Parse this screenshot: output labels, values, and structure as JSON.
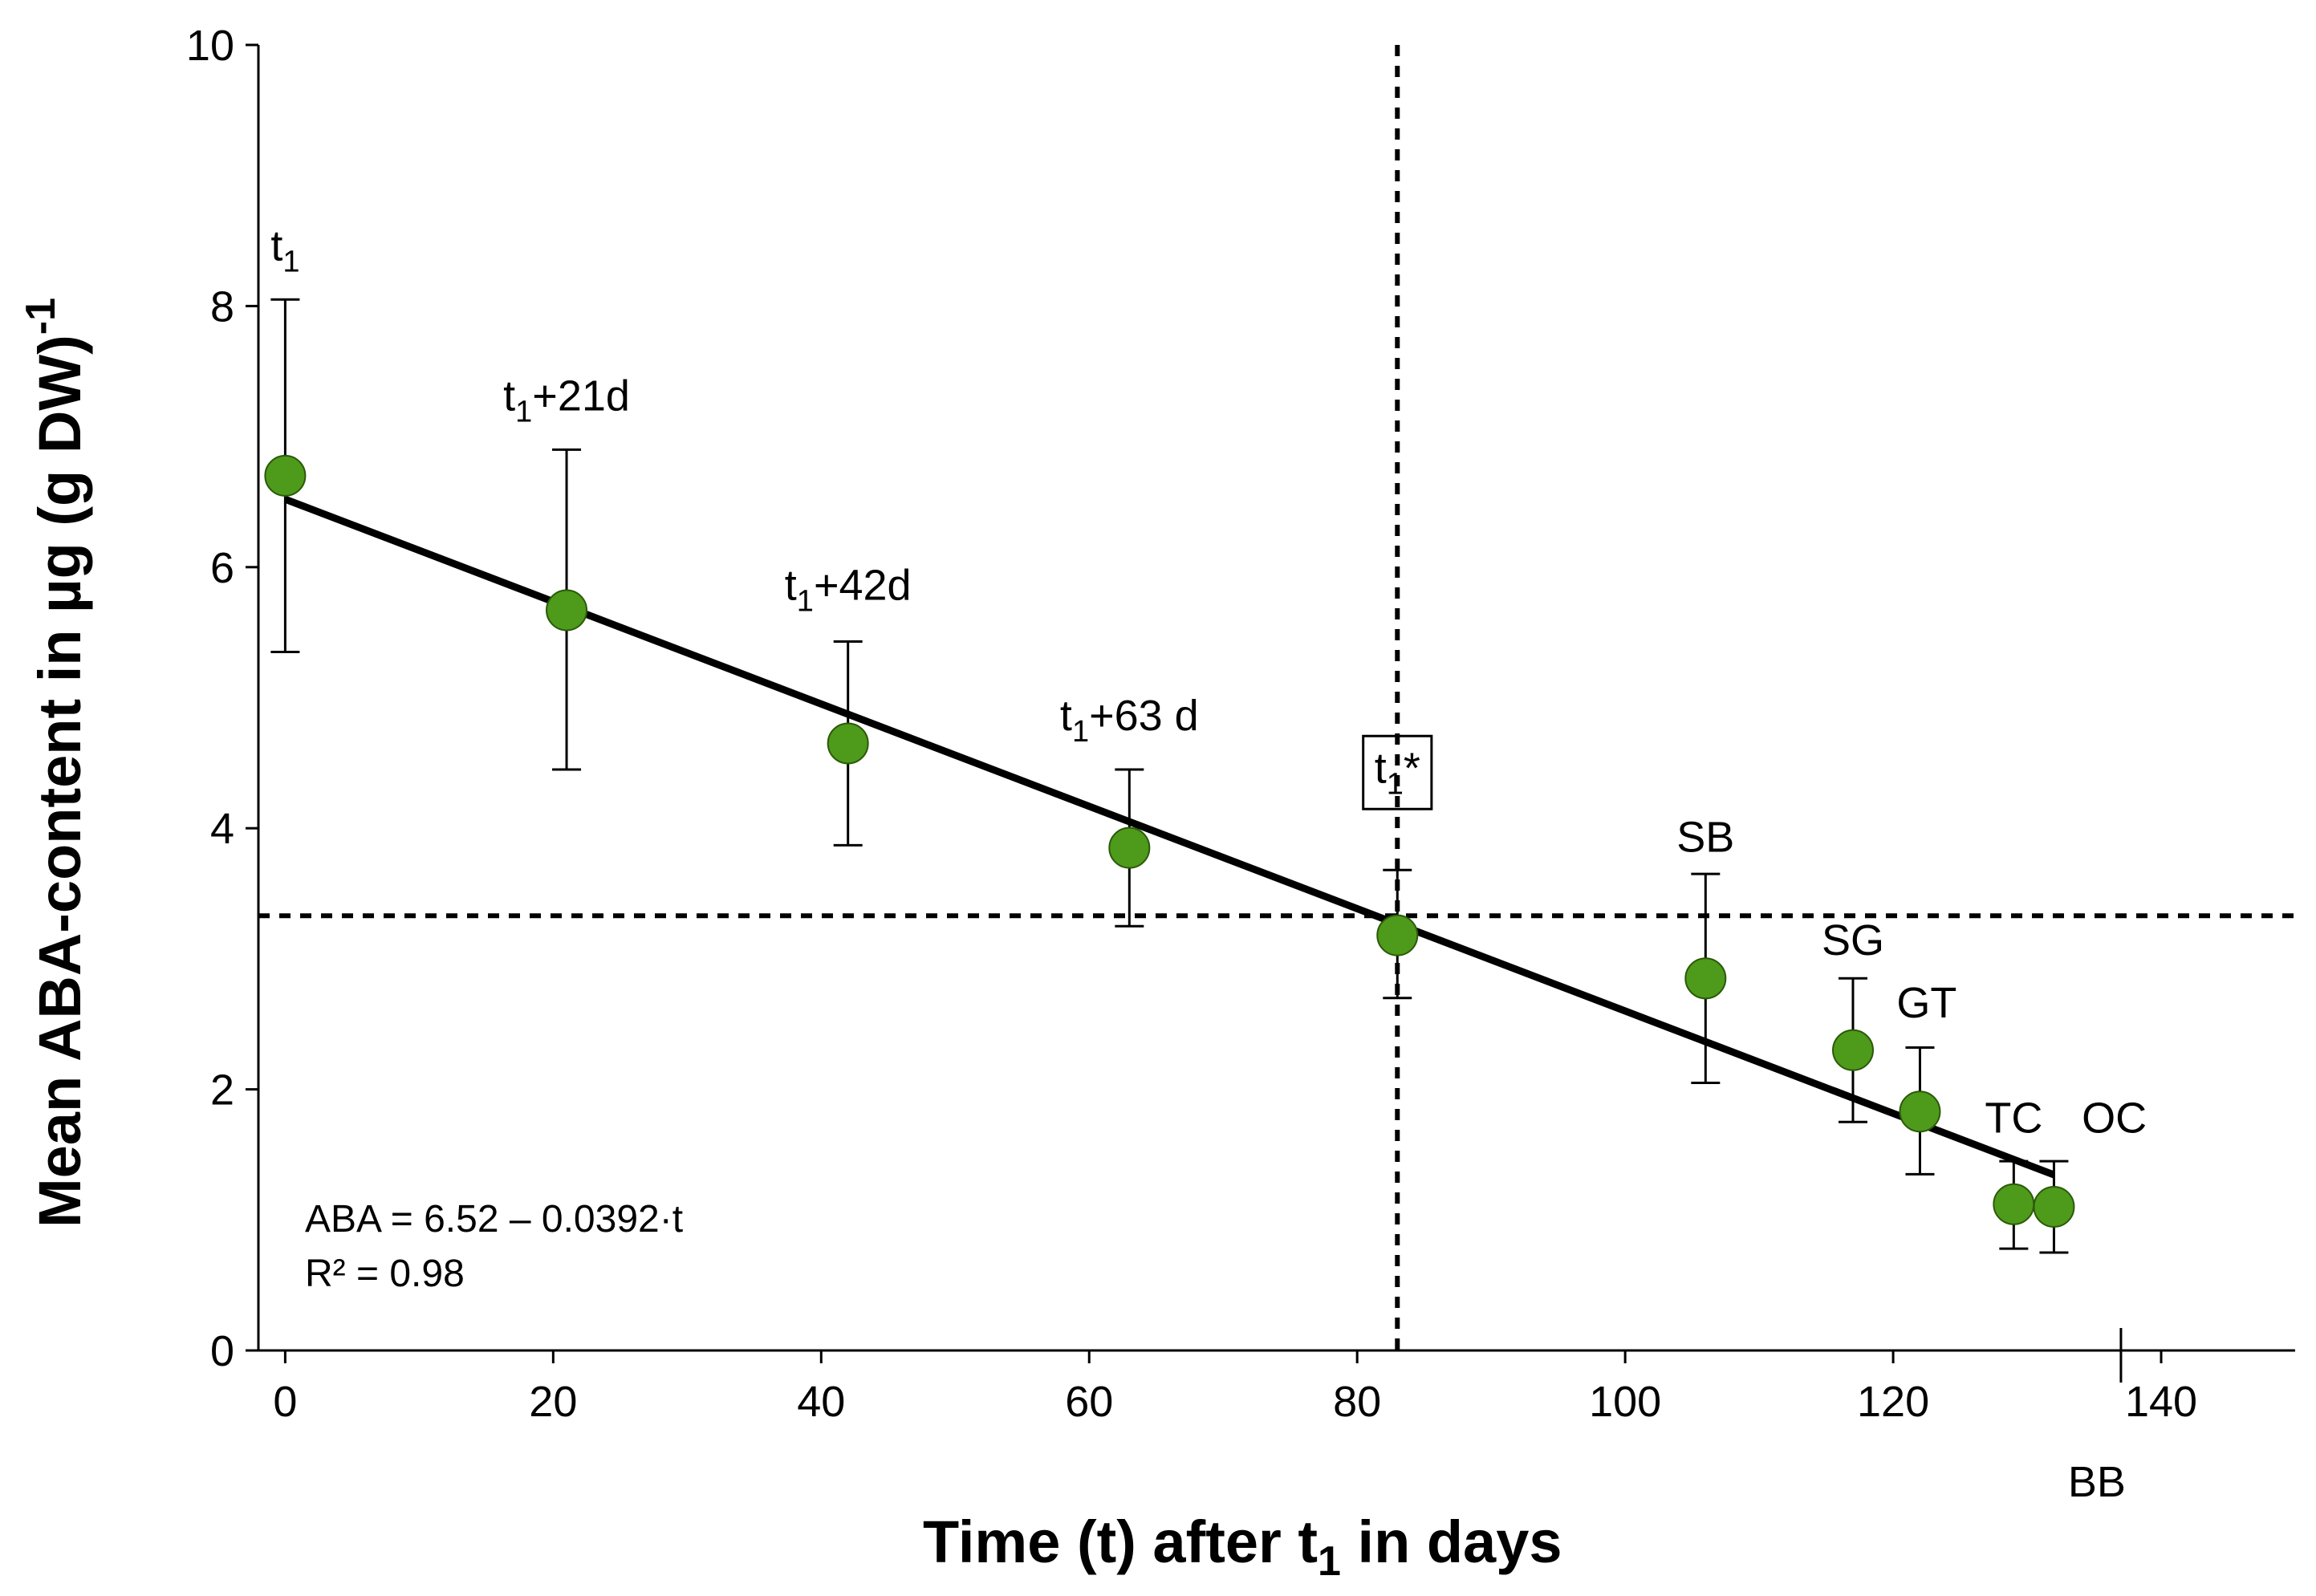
{
  "chart_data": {
    "type": "scatter",
    "xlabel": "Time (t) after t",
    "xlabel_sub": "1",
    "xlabel_suffix": " in days",
    "ylabel": "Mean ABA-content in µg (g DW)",
    "ylabel_sup": "-1",
    "xlim": [
      -2,
      150
    ],
    "ylim": [
      0,
      10
    ],
    "x_ticks": [
      0,
      20,
      40,
      60,
      80,
      100,
      120,
      140
    ],
    "y_ticks": [
      0,
      2,
      4,
      6,
      8,
      10
    ],
    "series": [
      {
        "name": "Mean ABA-content",
        "color": "#4e9a1a",
        "points": [
          {
            "x": 0,
            "y": 6.7,
            "err_low": 5.35,
            "err_high": 8.05
          },
          {
            "x": 21,
            "y": 5.67,
            "err_low": 4.45,
            "err_high": 6.9
          },
          {
            "x": 42,
            "y": 4.65,
            "err_low": 3.87,
            "err_high": 5.43
          },
          {
            "x": 63,
            "y": 3.85,
            "err_low": 3.25,
            "err_high": 4.45
          },
          {
            "x": 83,
            "y": 3.18,
            "err_low": 2.7,
            "err_high": 3.68
          },
          {
            "x": 106,
            "y": 2.85,
            "err_low": 2.05,
            "err_high": 3.65
          },
          {
            "x": 117,
            "y": 2.3,
            "err_low": 1.75,
            "err_high": 2.85
          },
          {
            "x": 122,
            "y": 1.83,
            "err_low": 1.35,
            "err_high": 2.32
          },
          {
            "x": 129,
            "y": 1.12,
            "err_low": 0.78,
            "err_high": 1.45
          },
          {
            "x": 132,
            "y": 1.1,
            "err_low": 0.75,
            "err_high": 1.45
          }
        ]
      }
    ],
    "regression": {
      "intercept": 6.52,
      "slope": -0.0392,
      "x_start": 0,
      "x_end": 132,
      "color": "#000000"
    },
    "reference_lines": {
      "vertical_x": 83,
      "horizontal_y": 3.33
    },
    "bb_marker_x": 137,
    "equation": "ABA = 6.52 – 0.0392·t",
    "r_squared": "R² = 0.98",
    "annotations": [
      {
        "text": "t",
        "sub": "1",
        "after": "",
        "x": 0,
        "y": 8.35,
        "anchor": "middle",
        "boxed": false
      },
      {
        "text": "t",
        "sub": "1",
        "after": "+21d",
        "x": 21,
        "y": 7.2,
        "anchor": "middle",
        "boxed": false
      },
      {
        "text": "t",
        "sub": "1",
        "after": "+42d",
        "x": 42,
        "y": 5.75,
        "anchor": "middle",
        "boxed": false
      },
      {
        "text": "t",
        "sub": "1",
        "after": "+63 d",
        "x": 63,
        "y": 4.75,
        "anchor": "middle",
        "boxed": false
      },
      {
        "text": "t",
        "sub": "1",
        "after": "*",
        "x": 83,
        "y": 4.35,
        "anchor": "middle",
        "boxed": true
      },
      {
        "text": "SB",
        "sub": "",
        "after": "",
        "x": 106,
        "y": 3.82,
        "anchor": "middle",
        "boxed": false
      },
      {
        "text": "SG",
        "sub": "",
        "after": "",
        "x": 117,
        "y": 3.03,
        "anchor": "middle",
        "boxed": false
      },
      {
        "text": "GT",
        "sub": "",
        "after": "",
        "x": 122.5,
        "y": 2.55,
        "anchor": "middle",
        "boxed": false
      },
      {
        "text": "TC",
        "sub": "",
        "after": "",
        "x": 129,
        "y": 1.67,
        "anchor": "middle",
        "boxed": false
      },
      {
        "text": "OC",
        "sub": "",
        "after": "",
        "x": 136.5,
        "y": 1.67,
        "anchor": "middle",
        "boxed": false
      }
    ],
    "bb_label": "BB"
  }
}
